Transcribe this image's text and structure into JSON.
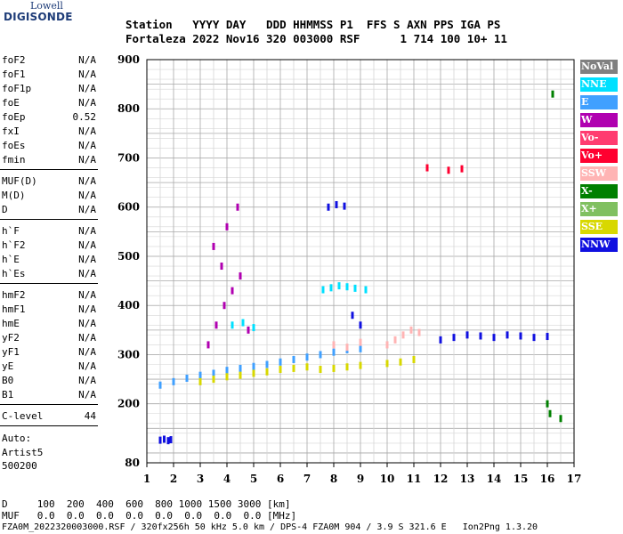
{
  "logo": {
    "line1": "Lowell",
    "line2": "DIGISONDE"
  },
  "header": {
    "row1": "Station   YYYY DAY   DDD HHMMSS P1  FFS S AXN PPS IGA PS",
    "row2": "Fortaleza 2022 Nov16 320 003000 RSF      1 714 100 10+ 11"
  },
  "params": [
    {
      "name": "foF2",
      "value": "N/A"
    },
    {
      "name": "foF1",
      "value": "N/A"
    },
    {
      "name": "foF1p",
      "value": "N/A"
    },
    {
      "name": "foE",
      "value": "N/A"
    },
    {
      "name": "foEp",
      "value": "0.52"
    },
    {
      "name": "fxI",
      "value": "N/A"
    },
    {
      "name": "foEs",
      "value": "N/A"
    },
    {
      "name": "fmin",
      "value": "N/A"
    },
    {
      "name": "MUF(D)",
      "value": "N/A"
    },
    {
      "name": "M(D)",
      "value": "N/A"
    },
    {
      "name": "D",
      "value": "N/A"
    },
    {
      "name": "h`F",
      "value": "N/A"
    },
    {
      "name": "h`F2",
      "value": "N/A"
    },
    {
      "name": "h`E",
      "value": "N/A"
    },
    {
      "name": "h`Es",
      "value": "N/A"
    },
    {
      "name": "hmF2",
      "value": "N/A"
    },
    {
      "name": "hmF1",
      "value": "N/A"
    },
    {
      "name": "hmE",
      "value": "N/A"
    },
    {
      "name": "yF2",
      "value": "N/A"
    },
    {
      "name": "yF1",
      "value": "N/A"
    },
    {
      "name": "yE",
      "value": "N/A"
    },
    {
      "name": "B0",
      "value": "N/A"
    },
    {
      "name": "B1",
      "value": "N/A"
    },
    {
      "name": "C-level",
      "value": "44"
    }
  ],
  "auto": {
    "line1": "Auto:",
    "line2": "Artist5",
    "line3": "500200"
  },
  "legend": [
    {
      "label": "NoVal",
      "color": "#808080"
    },
    {
      "label": "NNE",
      "color": "#00e0ff"
    },
    {
      "label": "E",
      "color": "#40a0ff"
    },
    {
      "label": "W",
      "color": "#b000b0"
    },
    {
      "label": "Vo-",
      "color": "#ff3c70"
    },
    {
      "label": "Vo+",
      "color": "#ff0030"
    },
    {
      "label": "SSW",
      "color": "#ffb4b4"
    },
    {
      "label": "X-",
      "color": "#008000"
    },
    {
      "label": "X+",
      "color": "#80c060"
    },
    {
      "label": "SSE",
      "color": "#d8d800"
    },
    {
      "label": "NNW",
      "color": "#1010e0"
    }
  ],
  "chart_data": {
    "type": "scatter",
    "xlim": [
      1,
      17
    ],
    "ylim": [
      80,
      900
    ],
    "x_ticks": [
      "1",
      "2",
      "3",
      "4",
      "5",
      "6",
      "7",
      "8",
      "9",
      "10",
      "11",
      "12",
      "13",
      "14",
      "15",
      "16",
      "17"
    ],
    "y_ticks": [
      "900",
      "800",
      "700",
      "600",
      "500",
      "400",
      "300",
      "200",
      "80"
    ],
    "y_tick_values": [
      900,
      800,
      700,
      600,
      500,
      400,
      300,
      200,
      80
    ],
    "grid": true,
    "traces": [
      {
        "mode": "NNW",
        "x": [
          1.5,
          1.65,
          1.8,
          1.9
        ],
        "y": [
          126,
          128,
          125,
          127
        ]
      },
      {
        "mode": "E",
        "x": [
          1.5,
          2.0,
          2.5,
          3.0,
          3.5,
          4.0,
          4.5,
          5.0,
          5.5,
          6.0,
          6.5,
          7.0,
          7.5,
          8.0,
          8.5,
          9.0
        ],
        "y": [
          238,
          245,
          252,
          258,
          262,
          268,
          272,
          276,
          280,
          285,
          290,
          295,
          300,
          305,
          310,
          312
        ]
      },
      {
        "mode": "SSE",
        "x": [
          3.0,
          3.5,
          4.0,
          4.5,
          5.0,
          5.5,
          6.0,
          6.5,
          7.0,
          7.5,
          8.0,
          8.5,
          9.0,
          10.0,
          10.5,
          11.0
        ],
        "y": [
          245,
          250,
          255,
          258,
          262,
          265,
          270,
          272,
          275,
          270,
          272,
          275,
          278,
          282,
          285,
          290
        ]
      },
      {
        "mode": "W",
        "x": [
          3.3,
          3.6,
          3.9,
          4.2,
          4.5,
          4.8,
          3.5,
          4.0,
          4.4,
          3.8
        ],
        "y": [
          320,
          360,
          400,
          430,
          460,
          350,
          520,
          560,
          600,
          480
        ]
      },
      {
        "mode": "NNE",
        "x": [
          7.6,
          7.9,
          8.2,
          8.5,
          8.8,
          9.2,
          4.2,
          4.6,
          5.0
        ],
        "y": [
          432,
          436,
          440,
          438,
          435,
          432,
          360,
          365,
          355
        ]
      },
      {
        "mode": "NNW",
        "x": [
          7.8,
          8.1,
          8.4,
          8.7,
          9.0,
          12.0,
          12.5,
          13.0,
          13.5,
          14.0,
          14.5,
          15.0,
          15.5,
          16.0
        ],
        "y": [
          600,
          605,
          602,
          380,
          360,
          330,
          335,
          340,
          338,
          335,
          340,
          338,
          335,
          337
        ]
      },
      {
        "mode": "SSW",
        "x": [
          10.0,
          10.3,
          10.6,
          10.9,
          11.2,
          8.0,
          8.5,
          9.0
        ],
        "y": [
          320,
          330,
          340,
          350,
          345,
          320,
          315,
          325
        ]
      },
      {
        "mode": "X-",
        "x": [
          16.0,
          16.1,
          16.2,
          16.5
        ],
        "y": [
          200,
          180,
          830,
          170
        ]
      },
      {
        "mode": "Vo+",
        "x": [
          11.5,
          12.3,
          12.8
        ],
        "y": [
          680,
          675,
          678
        ]
      }
    ]
  },
  "footer": {
    "line1": "D     100  200  400  600  800 1000 1500 3000 [km]",
    "line2": "MUF   0.0  0.0  0.0  0.0  0.0  0.0  0.0  0.0 [MHz]",
    "line3": "FZA0M_2022320003000.RSF / 320fx256h 50 kHz 5.0 km / DPS-4 FZA0M 904 / 3.9 S 321.6 E   Ion2Png 1.3.20"
  }
}
